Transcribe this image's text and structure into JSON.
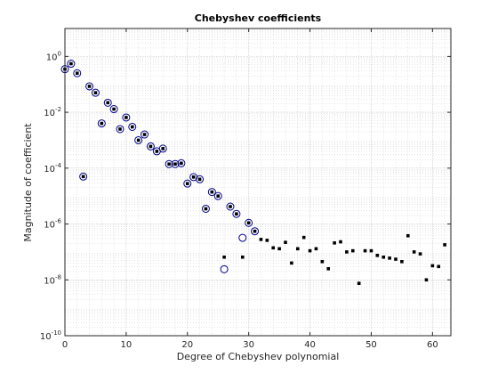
{
  "chart_data": {
    "type": "scatter",
    "title": "Chebyshev coefficients",
    "xlabel": "Degree of Chebyshev polynomial",
    "ylabel": "Magnitude of coefficient",
    "xlim": [
      0,
      63
    ],
    "ylim": [
      1e-10,
      10
    ],
    "yscale": "log",
    "grid": true,
    "minor_grid": true,
    "x_ticks": [
      0,
      10,
      20,
      30,
      40,
      50,
      60
    ],
    "x_tick_labels": [
      "0",
      "10",
      "20",
      "30",
      "40",
      "50",
      "60"
    ],
    "y_ticks": [
      1e-10,
      1e-08,
      1e-06,
      0.0001,
      0.01,
      1
    ],
    "y_tick_labels": [
      {
        "base": "10",
        "exp": "-10"
      },
      {
        "base": "10",
        "exp": "-8"
      },
      {
        "base": "10",
        "exp": "-6"
      },
      {
        "base": "10",
        "exp": "-4"
      },
      {
        "base": "10",
        "exp": "-2"
      },
      {
        "base": "10",
        "exp": "0"
      }
    ],
    "series": [
      {
        "marker": "open-circle",
        "color": "#00008b",
        "x": [
          0,
          1,
          2,
          3,
          4,
          5,
          6,
          7,
          8,
          9,
          10,
          11,
          12,
          13,
          14,
          15,
          16,
          17,
          18,
          19,
          20,
          21,
          22,
          23,
          24,
          25,
          26,
          27,
          28,
          29,
          30,
          31
        ],
        "y": [
          0.35,
          0.55,
          0.25,
          5e-05,
          0.085,
          0.05,
          0.004,
          0.022,
          0.013,
          0.0025,
          0.0065,
          0.003,
          0.001,
          0.0016,
          0.0006,
          0.0004,
          0.0005,
          0.00014,
          0.00014,
          0.00015,
          2.8e-05,
          4.8e-05,
          4e-05,
          3.5e-06,
          1.4e-05,
          1e-05,
          2.4e-08,
          4.2e-06,
          2.3e-06,
          3.2e-07,
          1.1e-06,
          5.5e-07
        ]
      },
      {
        "marker": "filled-square",
        "color": "#000000",
        "x": [
          0,
          1,
          2,
          3,
          4,
          5,
          6,
          7,
          8,
          9,
          10,
          11,
          12,
          13,
          14,
          15,
          16,
          17,
          18,
          19,
          20,
          21,
          22,
          23,
          24,
          25,
          26,
          27,
          28,
          29,
          30,
          31,
          32,
          33,
          34,
          35,
          36,
          37,
          38,
          39,
          40,
          41,
          42,
          43,
          44,
          45,
          46,
          47,
          48,
          49,
          50,
          51,
          52,
          53,
          54,
          55,
          56,
          57,
          58,
          59,
          60,
          61,
          62
        ],
        "y": [
          0.35,
          0.55,
          0.25,
          5e-05,
          0.085,
          0.05,
          0.004,
          0.022,
          0.013,
          0.0025,
          0.0065,
          0.003,
          0.001,
          0.0016,
          0.0006,
          0.0004,
          0.0005,
          0.00014,
          0.00014,
          0.00015,
          2.8e-05,
          4.8e-05,
          4e-05,
          3.5e-06,
          1.4e-05,
          1e-05,
          6.5e-08,
          4.2e-06,
          2.3e-06,
          6.5e-08,
          1.1e-06,
          5.5e-07,
          2.8e-07,
          2.6e-07,
          1.4e-07,
          1.3e-07,
          2.2e-07,
          4e-08,
          1.3e-07,
          3.3e-07,
          1.1e-07,
          1.3e-07,
          4.5e-08,
          2.5e-08,
          2.1e-07,
          2.3e-07,
          1e-07,
          1.1e-07,
          7.5e-09,
          1.1e-07,
          1.1e-07,
          7.5e-08,
          6.5e-08,
          6e-08,
          5.5e-08,
          4.5e-08,
          3.8e-07,
          1e-07,
          8.5e-08,
          1e-08,
          3.2e-08,
          3e-08,
          1.8e-07
        ]
      }
    ]
  }
}
